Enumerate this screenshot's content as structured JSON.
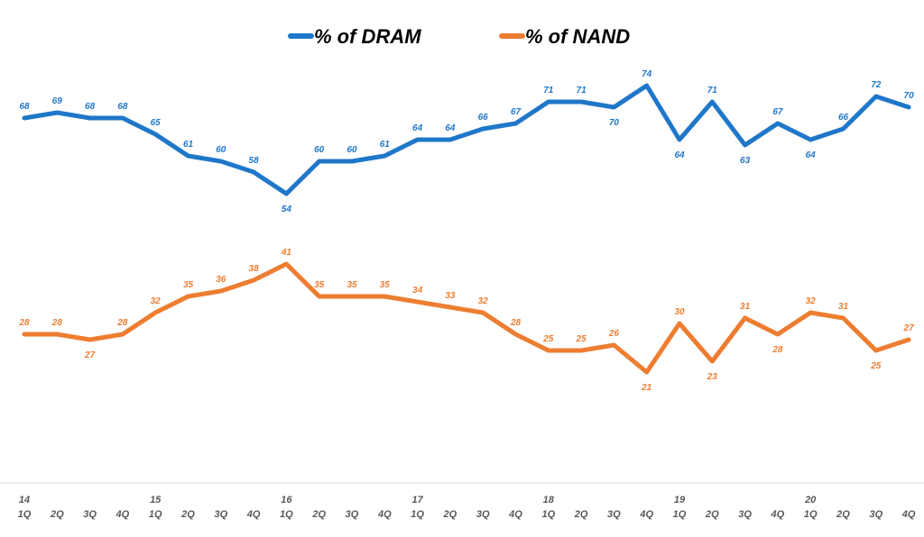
{
  "chart_data": {
    "type": "line",
    "title": "",
    "xlabel": "",
    "ylabel": "",
    "ylim": [
      0,
      80
    ],
    "grid": false,
    "legend_position": "top-center",
    "categories": [
      {
        "year": "14",
        "quarter": "1Q"
      },
      {
        "year": "",
        "quarter": "2Q"
      },
      {
        "year": "",
        "quarter": "3Q"
      },
      {
        "year": "",
        "quarter": "4Q"
      },
      {
        "year": "15",
        "quarter": "1Q"
      },
      {
        "year": "",
        "quarter": "2Q"
      },
      {
        "year": "",
        "quarter": "3Q"
      },
      {
        "year": "",
        "quarter": "4Q"
      },
      {
        "year": "16",
        "quarter": "1Q"
      },
      {
        "year": "",
        "quarter": "2Q"
      },
      {
        "year": "",
        "quarter": "3Q"
      },
      {
        "year": "",
        "quarter": "4Q"
      },
      {
        "year": "17",
        "quarter": "1Q"
      },
      {
        "year": "",
        "quarter": "2Q"
      },
      {
        "year": "",
        "quarter": "3Q"
      },
      {
        "year": "",
        "quarter": "4Q"
      },
      {
        "year": "18",
        "quarter": "1Q"
      },
      {
        "year": "",
        "quarter": "2Q"
      },
      {
        "year": "",
        "quarter": "3Q"
      },
      {
        "year": "",
        "quarter": "4Q"
      },
      {
        "year": "19",
        "quarter": "1Q"
      },
      {
        "year": "",
        "quarter": "2Q"
      },
      {
        "year": "",
        "quarter": "3Q"
      },
      {
        "year": "",
        "quarter": "4Q"
      },
      {
        "year": "20",
        "quarter": "1Q"
      },
      {
        "year": "",
        "quarter": "2Q"
      },
      {
        "year": "",
        "quarter": "3Q"
      },
      {
        "year": "",
        "quarter": "4Q"
      }
    ],
    "series": [
      {
        "name": "% of DRAM",
        "color": "#1F77C9",
        "values": [
          68,
          69,
          68,
          68,
          65,
          61,
          60,
          58,
          54,
          60,
          60,
          61,
          64,
          64,
          66,
          67,
          71,
          71,
          70,
          74,
          64,
          71,
          63,
          67,
          64,
          66,
          72,
          70
        ]
      },
      {
        "name": "% of NAND",
        "color": "#ED7D31",
        "values": [
          28,
          28,
          27,
          28,
          32,
          35,
          36,
          38,
          41,
          35,
          35,
          35,
          34,
          33,
          32,
          28,
          25,
          25,
          26,
          21,
          30,
          23,
          31,
          28,
          32,
          31,
          25,
          27
        ]
      }
    ]
  }
}
